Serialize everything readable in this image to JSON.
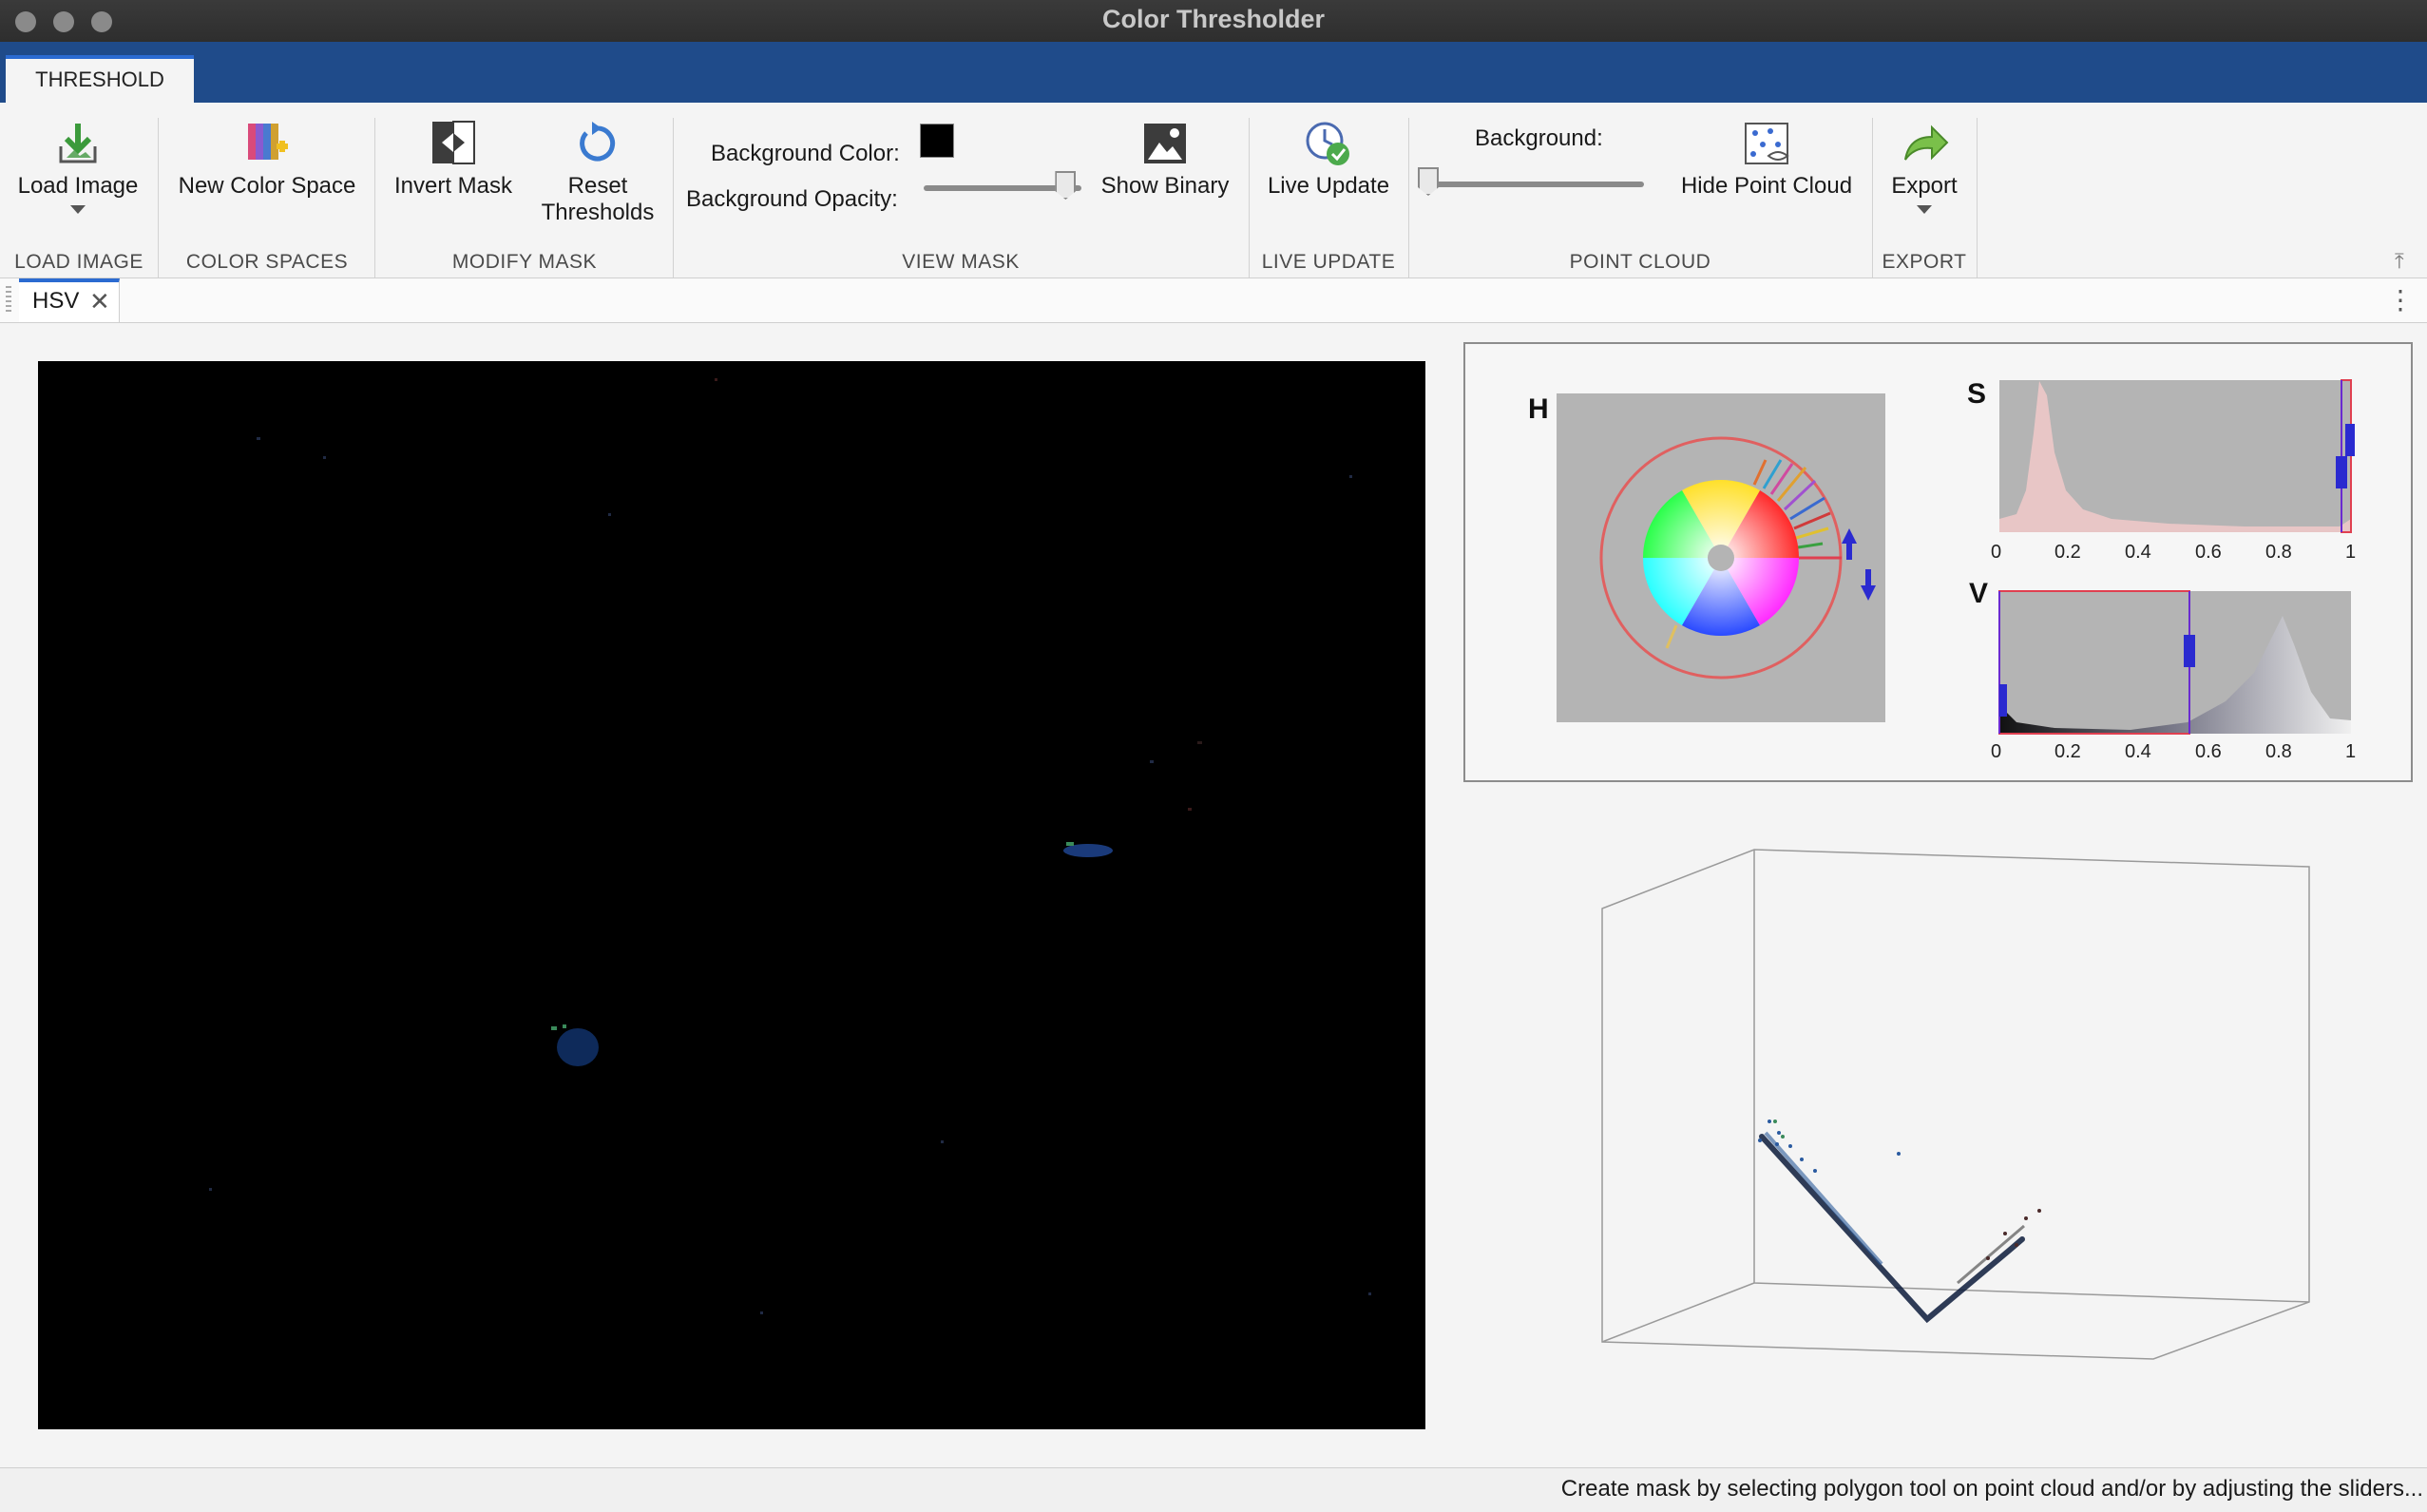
{
  "window": {
    "title": "Color Thresholder"
  },
  "tabs": [
    {
      "label": "THRESHOLD"
    }
  ],
  "toolstrip": {
    "load_image": {
      "label": "Load Image",
      "icon": "load-image-icon"
    },
    "new_color_space": {
      "label": "New Color Space",
      "icon": "color-space-icon"
    },
    "invert_mask": {
      "label": "Invert Mask",
      "icon": "invert-mask-icon"
    },
    "reset_thresholds": {
      "label_line1": "Reset",
      "label_line2": "Thresholds",
      "icon": "reset-icon"
    },
    "background_color_label": "Background Color:",
    "background_color": "#000000",
    "background_opacity_label": "Background Opacity:",
    "background_opacity": 0.9,
    "show_binary": {
      "label": "Show Binary",
      "icon": "binary-image-icon"
    },
    "live_update": {
      "label": "Live Update",
      "icon": "live-update-icon"
    },
    "point_cloud_background_label": "Background:",
    "point_cloud_background": 0.0,
    "hide_point_cloud": {
      "label": "Hide Point Cloud",
      "icon": "point-cloud-icon"
    },
    "export": {
      "label": "Export",
      "icon": "export-icon"
    },
    "groups": {
      "load_image": "LOAD IMAGE",
      "color_spaces": "COLOR SPACES",
      "modify_mask": "MODIFY MASK",
      "view_mask": "VIEW MASK",
      "live_update": "LIVE UPDATE",
      "point_cloud": "POINT CLOUD",
      "export": "EXPORT"
    }
  },
  "document_tabs": [
    {
      "label": "HSV"
    }
  ],
  "channels": {
    "h": {
      "label": "H"
    },
    "s": {
      "label": "S",
      "ticks": [
        "0",
        "0.2",
        "0.4",
        "0.6",
        "0.8",
        "1"
      ],
      "range": [
        0.98,
        1.0
      ]
    },
    "v": {
      "label": "V",
      "ticks": [
        "0",
        "0.2",
        "0.4",
        "0.6",
        "0.8",
        "1"
      ],
      "range": [
        0.0,
        0.54
      ]
    }
  },
  "status_bar": {
    "text": "Create mask by selecting polygon tool on point cloud and/or by adjusting the sliders..."
  },
  "colors": {
    "ribbon": "#1f4b8a",
    "accent": "#2b6bd1",
    "handle": "#2a2ad0",
    "range_line": "#e04050"
  }
}
